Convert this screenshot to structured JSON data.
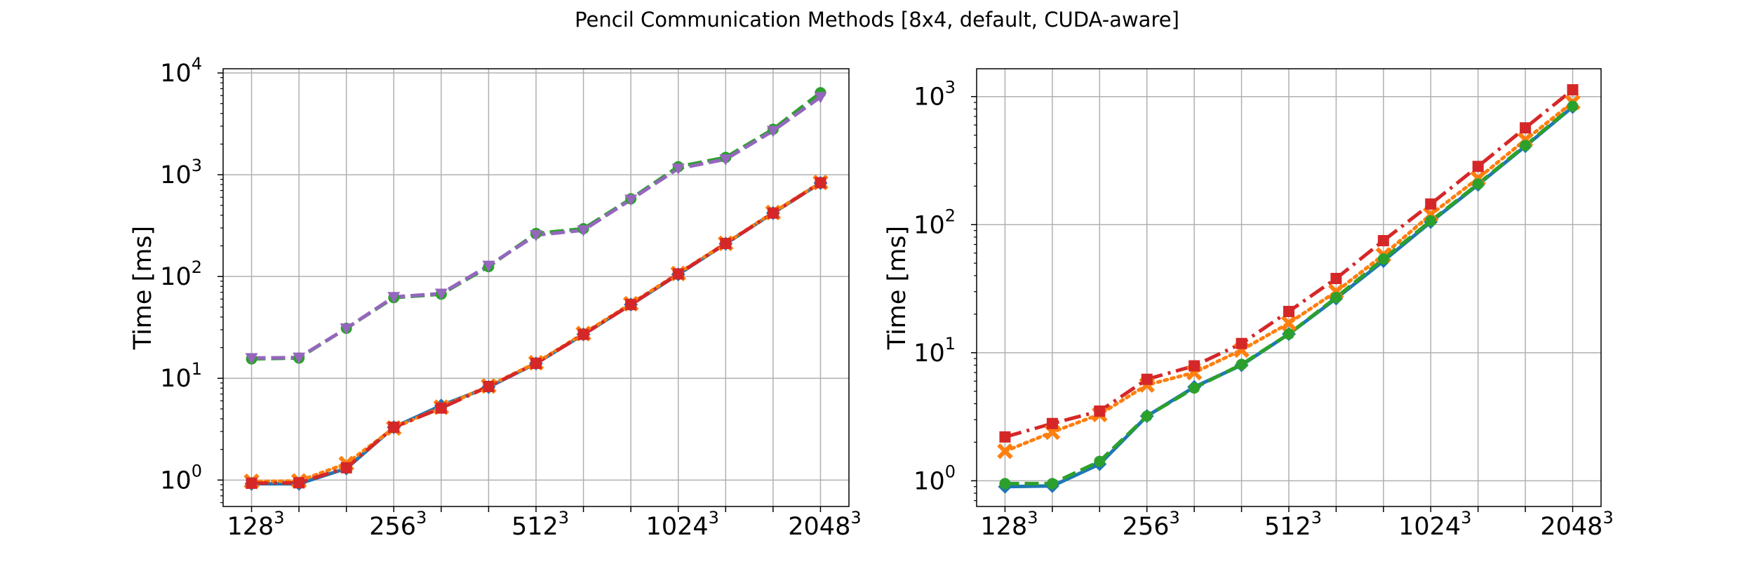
{
  "figure": {
    "title": "Pencil Communication Methods [8x4, default, CUDA-aware]"
  },
  "chart_data": [
    {
      "type": "line",
      "ylabel": "Time [ms]",
      "yscale": "log",
      "ylim": [
        0.55,
        11000
      ],
      "xlim": [
        -0.6,
        12.6
      ],
      "grid": true,
      "x": [
        0,
        1,
        2,
        3,
        4,
        5,
        6,
        7,
        8,
        9,
        10,
        11,
        12
      ],
      "x_ticks": [
        {
          "pos": 0,
          "base": "128",
          "exp": "3"
        },
        {
          "pos": 3,
          "base": "256",
          "exp": "3"
        },
        {
          "pos": 6,
          "base": "512",
          "exp": "3"
        },
        {
          "pos": 9,
          "base": "1024",
          "exp": "3"
        },
        {
          "pos": 12,
          "base": "2048",
          "exp": "3"
        }
      ],
      "y_ticks": [
        {
          "value": 1,
          "base": "10",
          "exp": "0"
        },
        {
          "value": 10,
          "base": "10",
          "exp": "1"
        },
        {
          "value": 100,
          "base": "10",
          "exp": "2"
        },
        {
          "value": 1000,
          "base": "10",
          "exp": "3"
        },
        {
          "value": 10000,
          "base": "10",
          "exp": "4"
        }
      ],
      "series": [
        {
          "color": "#1f77b4",
          "dash": "solid",
          "marker": "diamond",
          "values": [
            0.92,
            0.92,
            1.3,
            3.3,
            5.4,
            8.2,
            14.0,
            27.0,
            53.0,
            105.0,
            210.0,
            420.0,
            830.0
          ]
        },
        {
          "color": "#ff7f0e",
          "dash": "dot",
          "marker": "x",
          "values": [
            0.97,
            0.98,
            1.45,
            3.25,
            5.2,
            8.4,
            14.2,
            27.5,
            54.0,
            107.0,
            212.0,
            425.0,
            840.0
          ]
        },
        {
          "color": "#2ca02c",
          "dash": "dash",
          "marker": "circle",
          "values": [
            15.5,
            15.8,
            31.0,
            62.0,
            67.0,
            125.0,
            265.0,
            295.0,
            580.0,
            1200.0,
            1480.0,
            2800.0,
            6400.0
          ]
        },
        {
          "color": "#d62728",
          "dash": "dashdot",
          "marker": "square",
          "values": [
            0.93,
            0.94,
            1.32,
            3.3,
            5.1,
            8.3,
            14.0,
            27.0,
            53.0,
            106.0,
            211.0,
            420.0,
            835.0
          ]
        },
        {
          "color": "#9467bd",
          "dash": "dash",
          "marker": "triangle-down",
          "values": [
            15.8,
            16.0,
            31.0,
            63.0,
            68.0,
            128.0,
            255.0,
            285.0,
            570.0,
            1150.0,
            1420.0,
            2700.0,
            5800.0
          ]
        }
      ]
    },
    {
      "type": "line",
      "ylabel": "Time [ms]",
      "yscale": "log",
      "ylim": [
        0.63,
        1650
      ],
      "xlim": [
        -0.6,
        12.6
      ],
      "grid": true,
      "x": [
        0,
        1,
        2,
        3,
        4,
        5,
        6,
        7,
        8,
        9,
        10,
        11,
        12
      ],
      "x_ticks": [
        {
          "pos": 0,
          "base": "128",
          "exp": "3"
        },
        {
          "pos": 3,
          "base": "256",
          "exp": "3"
        },
        {
          "pos": 6,
          "base": "512",
          "exp": "3"
        },
        {
          "pos": 9,
          "base": "1024",
          "exp": "3"
        },
        {
          "pos": 12,
          "base": "2048",
          "exp": "3"
        }
      ],
      "y_ticks": [
        {
          "value": 1,
          "base": "10",
          "exp": "0"
        },
        {
          "value": 10,
          "base": "10",
          "exp": "1"
        },
        {
          "value": 100,
          "base": "10",
          "exp": "2"
        },
        {
          "value": 1000,
          "base": "10",
          "exp": "3"
        }
      ],
      "series": [
        {
          "color": "#1f77b4",
          "dash": "solid",
          "marker": "diamond",
          "values": [
            0.9,
            0.91,
            1.35,
            3.2,
            5.4,
            8.0,
            14.0,
            26.5,
            52.0,
            105.0,
            205.0,
            410.0,
            830.0
          ]
        },
        {
          "color": "#ff7f0e",
          "dash": "dot",
          "marker": "x",
          "values": [
            1.7,
            2.4,
            3.3,
            5.6,
            7.0,
            10.5,
            17.0,
            30.0,
            58.0,
            120.0,
            230.0,
            460.0,
            900.0
          ]
        },
        {
          "color": "#2ca02c",
          "dash": "dash",
          "marker": "circle",
          "values": [
            0.95,
            0.95,
            1.42,
            3.2,
            5.3,
            8.1,
            14.0,
            27.0,
            54.0,
            107.0,
            208.0,
            415.0,
            840.0
          ]
        },
        {
          "color": "#d62728",
          "dash": "dashdot",
          "marker": "square",
          "values": [
            2.2,
            2.8,
            3.5,
            6.2,
            7.9,
            11.8,
            21.0,
            38.0,
            75.0,
            145.0,
            285.0,
            570.0,
            1130.0
          ]
        }
      ]
    }
  ]
}
